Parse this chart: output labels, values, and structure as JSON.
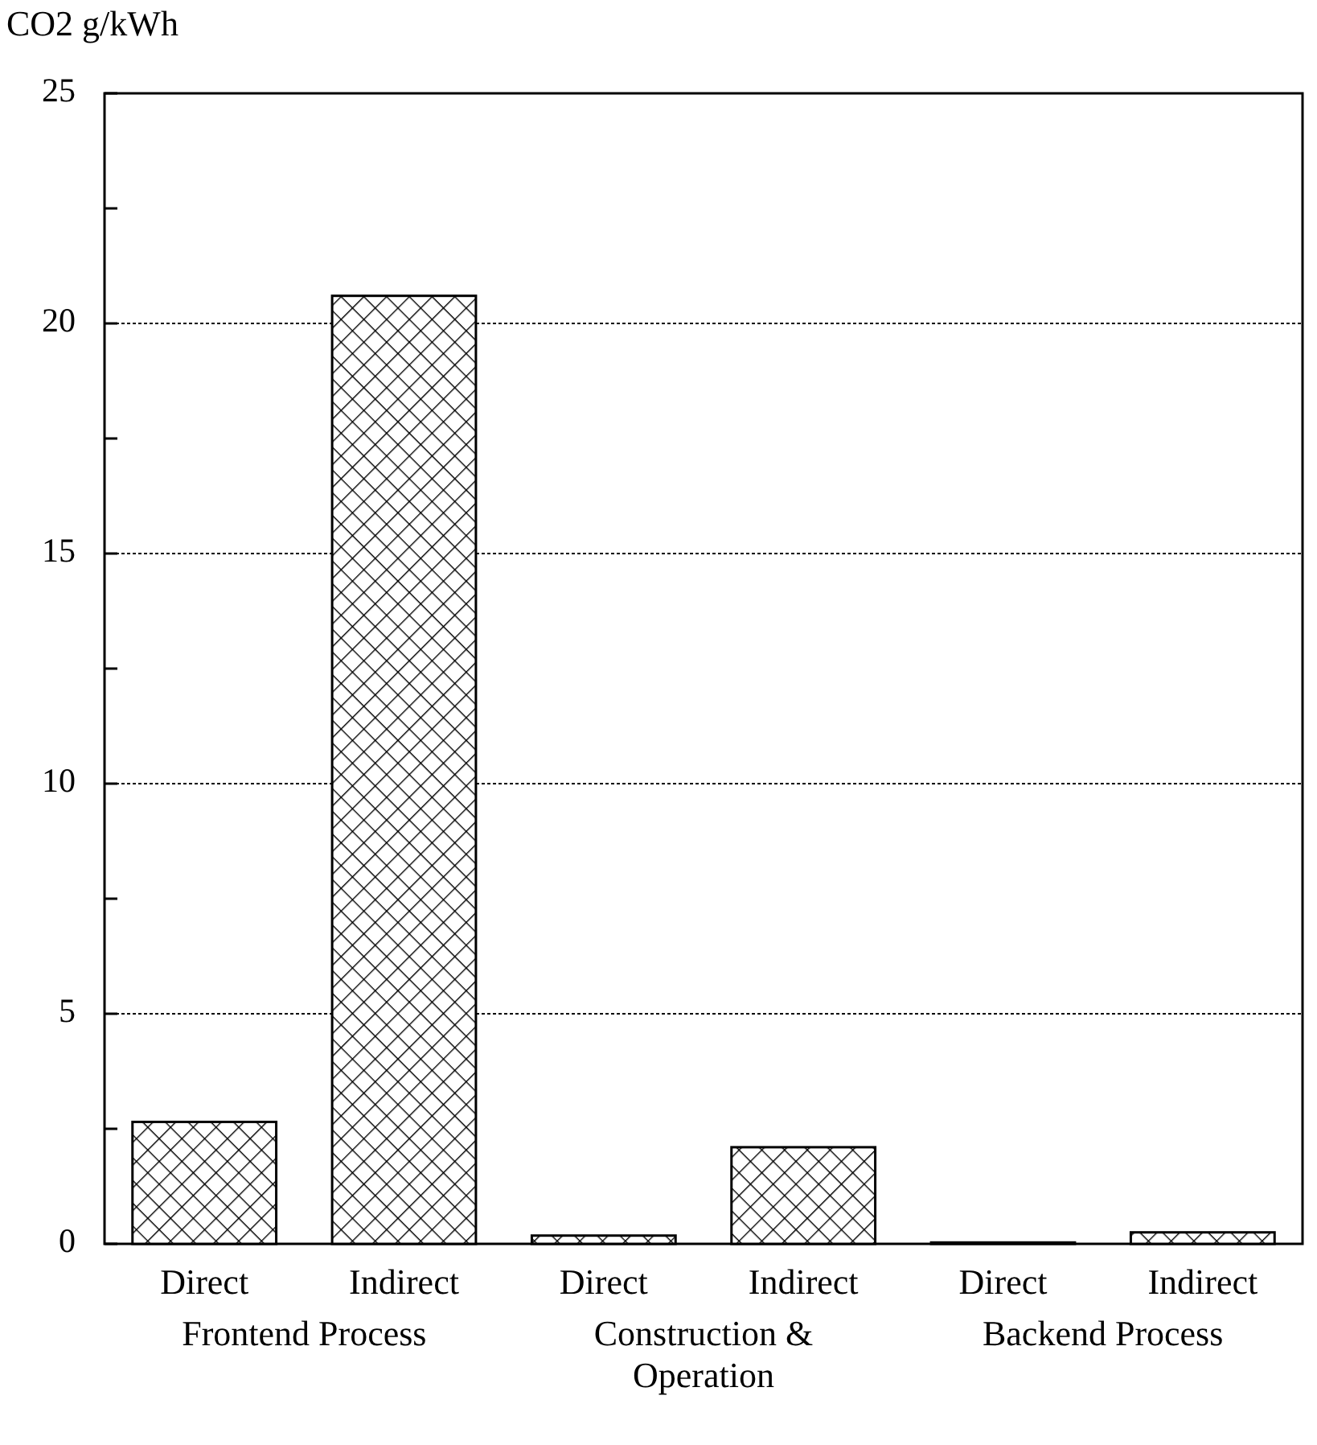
{
  "chart_data": {
    "type": "bar",
    "ylabel": "CO2 g/kWh",
    "categories": [
      "Direct",
      "Indirect",
      "Direct",
      "Indirect",
      "Direct",
      "Indirect"
    ],
    "values": [
      2.65,
      20.6,
      0.18,
      2.1,
      0.03,
      0.25
    ],
    "color": "#000000",
    "ylim": [
      0,
      25
    ],
    "yticks": [
      0,
      {
        "value": 2.5,
        "label": null
      },
      5,
      {
        "value": 7.5,
        "label": null
      },
      10,
      {
        "value": 12.5,
        "label": null
      },
      15,
      {
        "value": 17.5,
        "label": null
      },
      20,
      {
        "value": 22.5,
        "label": null
      },
      25
    ],
    "grid": "y",
    "annotations": [
      "Frontend Process",
      "Construction & Operation",
      "Backend Process"
    ]
  }
}
